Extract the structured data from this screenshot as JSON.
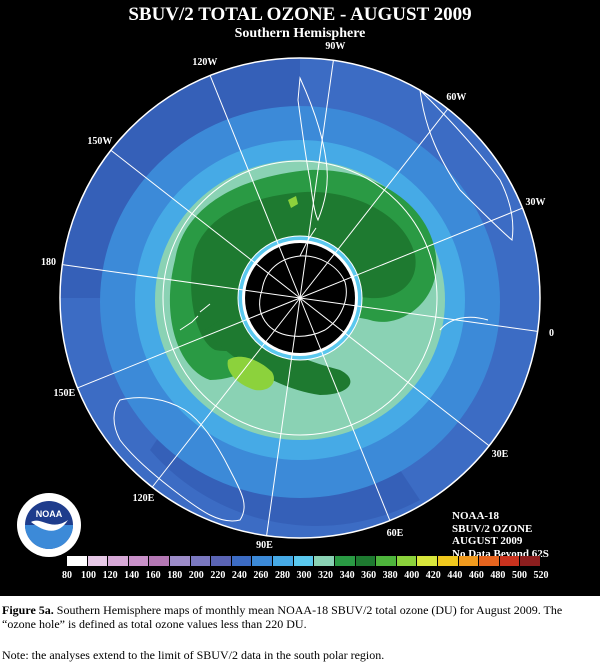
{
  "title": "SBUV/2 TOTAL OZONE - AUGUST 2009",
  "subtitle": "Southern Hemisphere",
  "longitude_labels": [
    {
      "text": "90W",
      "angle": 90
    },
    {
      "text": "60W",
      "angle": 60
    },
    {
      "text": "30W",
      "angle": 30
    },
    {
      "text": "0",
      "angle": 0
    },
    {
      "text": "30E",
      "angle": -30
    },
    {
      "text": "60E",
      "angle": -60
    },
    {
      "text": "90E",
      "angle": -90
    },
    {
      "text": "120E",
      "angle": -120
    },
    {
      "text": "150E",
      "angle": -150
    },
    {
      "text": "180",
      "angle": 180
    },
    {
      "text": "150W",
      "angle": 150
    },
    {
      "text": "120W",
      "angle": 120
    }
  ],
  "info": {
    "line1": "NOAA-18",
    "line2": "SBUV/2 OZONE",
    "line3": "AUGUST 2009",
    "line4": "No Data Beyond 62S"
  },
  "logo": {
    "text": "NOAA"
  },
  "legend": {
    "ticks": [
      "80",
      "100",
      "120",
      "140",
      "160",
      "180",
      "200",
      "220",
      "240",
      "260",
      "280",
      "300",
      "320",
      "340",
      "360",
      "380",
      "400",
      "420",
      "440",
      "460",
      "480",
      "500",
      "520"
    ],
    "colors": [
      "#ffffff",
      "#e6c8e6",
      "#d6a8d6",
      "#c890c8",
      "#b478b4",
      "#9c8cc8",
      "#7a78c0",
      "#5a64b4",
      "#3c6cc4",
      "#3c8ad8",
      "#46aae6",
      "#5ac8ee",
      "#8ad2b4",
      "#2a9a44",
      "#1e7a30",
      "#4eb43c",
      "#8cd23c",
      "#d8e63c",
      "#f0c81e",
      "#f09a1e",
      "#e6641e",
      "#c8321e",
      "#8c1e1e"
    ]
  },
  "caption": {
    "label": "Figure 5a.",
    "text": " Southern Hemisphere maps of monthly mean NOAA-18 SBUV/2 total ozone (DU) for August 2009. The “ozone hole” is defined as total ozone values less than 220 DU."
  },
  "note": "Note: the analyses extend to the limit of SBUV/2 data in the south polar region."
}
